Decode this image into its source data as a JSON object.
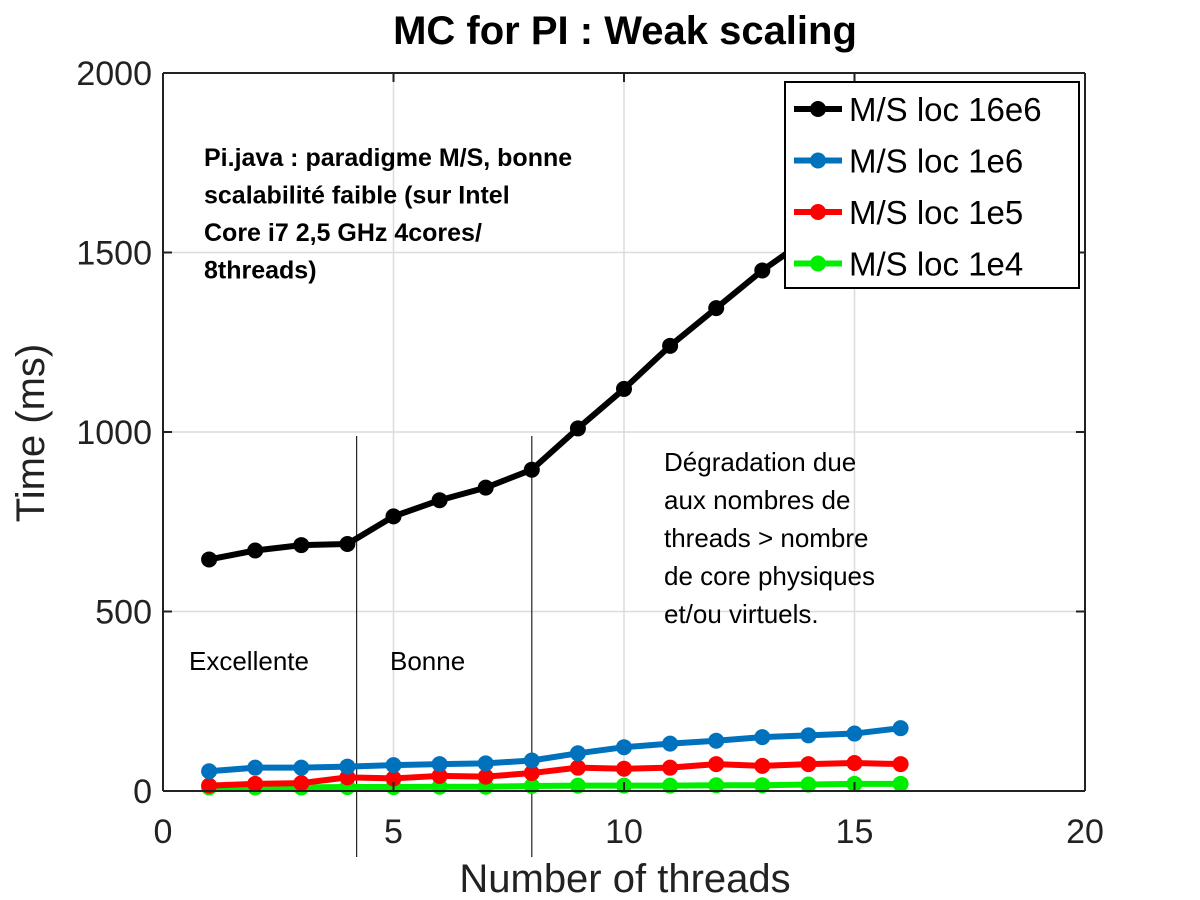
{
  "chart_data": {
    "type": "line",
    "title": "MC for PI : Weak scaling",
    "xlabel": "Number of threads",
    "ylabel": "Time (ms)",
    "xlim": [
      0,
      20
    ],
    "ylim": [
      0,
      2000
    ],
    "xticks": [
      0,
      5,
      10,
      15,
      20
    ],
    "yticks": [
      0,
      500,
      1000,
      1500,
      2000
    ],
    "grid": true,
    "legend_position": "top-right",
    "x": [
      1,
      2,
      3,
      4,
      5,
      6,
      7,
      8,
      9,
      10,
      11,
      12,
      13,
      14,
      15,
      16
    ],
    "series": [
      {
        "name": "M/S loc 16e6",
        "color": "#000000",
        "values": [
          645,
          670,
          685,
          688,
          765,
          810,
          845,
          895,
          1010,
          1120,
          1240,
          1345,
          1450,
          1540,
          1640,
          1760
        ]
      },
      {
        "name": "M/S loc 1e6",
        "color": "#0072BD",
        "values": [
          55,
          65,
          65,
          68,
          72,
          75,
          77,
          85,
          105,
          122,
          132,
          140,
          150,
          155,
          160,
          175
        ]
      },
      {
        "name": "M/S loc 1e5",
        "color": "#FF0000",
        "values": [
          15,
          20,
          22,
          38,
          35,
          42,
          40,
          50,
          65,
          62,
          65,
          75,
          70,
          75,
          78,
          75
        ]
      },
      {
        "name": "M/S loc 1e4",
        "color": "#00EE00",
        "values": [
          10,
          10,
          10,
          11,
          11,
          12,
          12,
          14,
          15,
          15,
          15,
          16,
          16,
          18,
          20,
          20
        ]
      }
    ],
    "vertical_markers": [
      4.2,
      8.0
    ],
    "annotations": {
      "note_lines": [
        "Pi.java : paradigme M/S, bonne",
        "scalabilité faible (sur  Intel",
        "Core i7 2,5 GHz 4cores/",
        "8threads)"
      ],
      "degradation_lines": [
        "Dégradation due",
        "aux nombres de",
        "threads > nombre",
        "de core physiques",
        "et/ou virtuels."
      ],
      "region_excellent": "Excellente",
      "region_good": "Bonne"
    }
  }
}
